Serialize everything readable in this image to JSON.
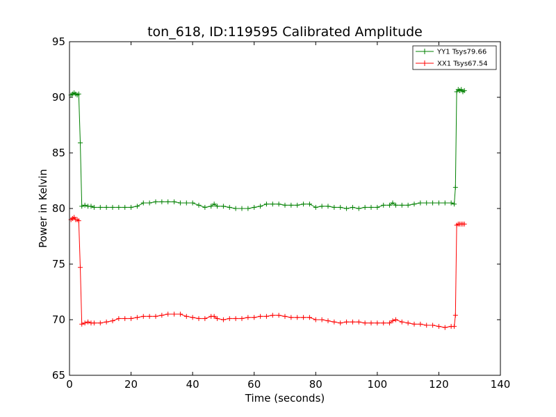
{
  "chart_data": {
    "type": "line",
    "title": "ton_618, ID:119595 Calibrated Amplitude",
    "xlabel": "Time (seconds)",
    "ylabel": "Power in Kelvin",
    "xlim": [
      0,
      140
    ],
    "ylim": [
      65,
      95
    ],
    "xticks": [
      0,
      20,
      40,
      60,
      80,
      100,
      120,
      140
    ],
    "yticks": [
      65,
      70,
      75,
      80,
      85,
      90,
      95
    ],
    "grid": false,
    "legend_position": "top-right",
    "marker": "plus",
    "series": [
      {
        "name": "YY1 Tsys79.66",
        "color": "#008000",
        "points": [
          [
            0.5,
            90.2
          ],
          [
            1.0,
            90.3
          ],
          [
            1.5,
            90.4
          ],
          [
            2.0,
            90.3
          ],
          [
            2.5,
            90.2
          ],
          [
            3.0,
            90.3
          ],
          [
            3.5,
            85.9
          ],
          [
            4.0,
            80.2
          ],
          [
            5,
            80.3
          ],
          [
            6,
            80.2
          ],
          [
            7,
            80.2
          ],
          [
            8,
            80.1
          ],
          [
            10,
            80.1
          ],
          [
            12,
            80.1
          ],
          [
            14,
            80.1
          ],
          [
            16,
            80.1
          ],
          [
            18,
            80.1
          ],
          [
            20,
            80.1
          ],
          [
            22,
            80.2
          ],
          [
            24,
            80.5
          ],
          [
            26,
            80.5
          ],
          [
            28,
            80.6
          ],
          [
            30,
            80.6
          ],
          [
            32,
            80.6
          ],
          [
            34,
            80.6
          ],
          [
            36,
            80.5
          ],
          [
            38,
            80.5
          ],
          [
            40,
            80.5
          ],
          [
            42,
            80.3
          ],
          [
            44,
            80.1
          ],
          [
            46,
            80.2
          ],
          [
            47,
            80.4
          ],
          [
            48,
            80.2
          ],
          [
            50,
            80.2
          ],
          [
            52,
            80.1
          ],
          [
            54,
            80.0
          ],
          [
            56,
            80.0
          ],
          [
            58,
            80.0
          ],
          [
            60,
            80.1
          ],
          [
            62,
            80.2
          ],
          [
            64,
            80.4
          ],
          [
            66,
            80.4
          ],
          [
            68,
            80.4
          ],
          [
            70,
            80.3
          ],
          [
            72,
            80.3
          ],
          [
            74,
            80.3
          ],
          [
            76,
            80.4
          ],
          [
            78,
            80.4
          ],
          [
            80,
            80.1
          ],
          [
            82,
            80.2
          ],
          [
            84,
            80.2
          ],
          [
            86,
            80.1
          ],
          [
            88,
            80.1
          ],
          [
            90,
            80.0
          ],
          [
            92,
            80.1
          ],
          [
            94,
            80.0
          ],
          [
            96,
            80.1
          ],
          [
            98,
            80.1
          ],
          [
            100,
            80.1
          ],
          [
            102,
            80.3
          ],
          [
            104,
            80.3
          ],
          [
            105,
            80.5
          ],
          [
            106,
            80.3
          ],
          [
            108,
            80.3
          ],
          [
            110,
            80.3
          ],
          [
            112,
            80.4
          ],
          [
            114,
            80.5
          ],
          [
            116,
            80.5
          ],
          [
            118,
            80.5
          ],
          [
            120,
            80.5
          ],
          [
            122,
            80.5
          ],
          [
            124,
            80.5
          ],
          [
            125.0,
            80.4
          ],
          [
            125.4,
            81.9
          ],
          [
            125.8,
            90.5
          ],
          [
            126.3,
            90.7
          ],
          [
            126.8,
            90.6
          ],
          [
            127.3,
            90.7
          ],
          [
            127.8,
            90.5
          ],
          [
            128.3,
            90.6
          ]
        ]
      },
      {
        "name": "XX1 Tsys67.54",
        "color": "#ff0000",
        "points": [
          [
            0.5,
            79.0
          ],
          [
            1.0,
            79.1
          ],
          [
            1.5,
            79.2
          ],
          [
            2.0,
            79.0
          ],
          [
            2.5,
            79.0
          ],
          [
            3.0,
            78.9
          ],
          [
            3.5,
            74.7
          ],
          [
            4.0,
            69.6
          ],
          [
            5,
            69.7
          ],
          [
            6,
            69.8
          ],
          [
            7,
            69.7
          ],
          [
            8,
            69.7
          ],
          [
            10,
            69.7
          ],
          [
            12,
            69.8
          ],
          [
            14,
            69.9
          ],
          [
            16,
            70.1
          ],
          [
            18,
            70.1
          ],
          [
            20,
            70.1
          ],
          [
            22,
            70.2
          ],
          [
            24,
            70.3
          ],
          [
            26,
            70.3
          ],
          [
            28,
            70.3
          ],
          [
            30,
            70.4
          ],
          [
            32,
            70.5
          ],
          [
            34,
            70.5
          ],
          [
            36,
            70.5
          ],
          [
            38,
            70.3
          ],
          [
            40,
            70.2
          ],
          [
            42,
            70.1
          ],
          [
            44,
            70.1
          ],
          [
            46,
            70.3
          ],
          [
            47,
            70.3
          ],
          [
            48,
            70.1
          ],
          [
            50,
            70.0
          ],
          [
            52,
            70.1
          ],
          [
            54,
            70.1
          ],
          [
            56,
            70.1
          ],
          [
            58,
            70.2
          ],
          [
            60,
            70.2
          ],
          [
            62,
            70.3
          ],
          [
            64,
            70.3
          ],
          [
            66,
            70.4
          ],
          [
            68,
            70.4
          ],
          [
            70,
            70.3
          ],
          [
            72,
            70.2
          ],
          [
            74,
            70.2
          ],
          [
            76,
            70.2
          ],
          [
            78,
            70.2
          ],
          [
            80,
            70.0
          ],
          [
            82,
            70.0
          ],
          [
            84,
            69.9
          ],
          [
            86,
            69.8
          ],
          [
            88,
            69.7
          ],
          [
            90,
            69.8
          ],
          [
            92,
            69.8
          ],
          [
            94,
            69.8
          ],
          [
            96,
            69.7
          ],
          [
            98,
            69.7
          ],
          [
            100,
            69.7
          ],
          [
            102,
            69.7
          ],
          [
            104,
            69.7
          ],
          [
            105,
            69.9
          ],
          [
            106,
            70.0
          ],
          [
            108,
            69.8
          ],
          [
            110,
            69.7
          ],
          [
            112,
            69.6
          ],
          [
            114,
            69.6
          ],
          [
            116,
            69.5
          ],
          [
            118,
            69.5
          ],
          [
            120,
            69.4
          ],
          [
            122,
            69.3
          ],
          [
            124,
            69.4
          ],
          [
            125.0,
            69.4
          ],
          [
            125.4,
            70.4
          ],
          [
            125.8,
            78.5
          ],
          [
            126.3,
            78.6
          ],
          [
            126.8,
            78.6
          ],
          [
            127.3,
            78.6
          ],
          [
            127.8,
            78.6
          ],
          [
            128.3,
            78.6
          ]
        ]
      }
    ]
  }
}
